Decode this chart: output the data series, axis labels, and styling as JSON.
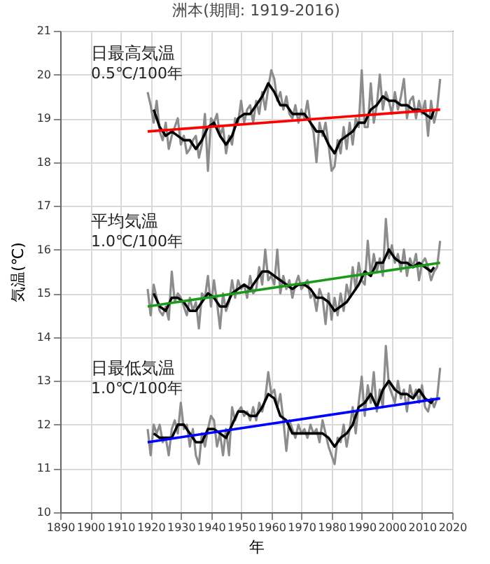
{
  "chart_data": {
    "type": "line",
    "title": "洲本(期間: 1919-2016)",
    "xlabel": "年",
    "ylabel": "気温(℃)",
    "annotations": [
      "日最高気温",
      "0.5℃/100年",
      "平均気温",
      "1.0℃/100年",
      "日最低気温",
      "1.0℃/100年"
    ],
    "x": [
      1919,
      1920,
      1921,
      1922,
      1923,
      1924,
      1925,
      1926,
      1927,
      1928,
      1929,
      1930,
      1931,
      1932,
      1933,
      1934,
      1935,
      1936,
      1937,
      1938,
      1939,
      1940,
      1941,
      1942,
      1943,
      1944,
      1945,
      1946,
      1947,
      1948,
      1949,
      1950,
      1951,
      1952,
      1953,
      1954,
      1955,
      1956,
      1957,
      1958,
      1959,
      1960,
      1961,
      1962,
      1963,
      1964,
      1965,
      1966,
      1967,
      1968,
      1969,
      1970,
      1971,
      1972,
      1973,
      1974,
      1975,
      1976,
      1977,
      1978,
      1979,
      1980,
      1981,
      1982,
      1983,
      1984,
      1985,
      1986,
      1987,
      1988,
      1989,
      1990,
      1991,
      1992,
      1993,
      1994,
      1995,
      1996,
      1997,
      1998,
      1999,
      2000,
      2001,
      2002,
      2003,
      2004,
      2005,
      2006,
      2007,
      2008,
      2009,
      2010,
      2011,
      2012,
      2013,
      2014,
      2015,
      2016
    ],
    "series": [
      {
        "color": "#8c8c8c",
        "values": [
          19.6,
          19.3,
          18.9,
          19.4,
          18.7,
          18.5,
          18.9,
          18.3,
          18.6,
          18.8,
          19.0,
          18.4,
          18.6,
          18.2,
          18.3,
          18.5,
          18.6,
          18.1,
          18.4,
          19.1,
          17.8,
          19.0,
          18.9,
          19.1,
          18.6,
          18.8,
          18.2,
          18.6,
          18.4,
          19.0,
          18.9,
          19.4,
          18.9,
          19.2,
          19.3,
          18.9,
          19.4,
          19.1,
          19.6,
          19.2,
          19.7,
          20.1,
          19.9,
          19.4,
          19.6,
          19.2,
          19.5,
          19.1,
          19.0,
          19.3,
          18.9,
          19.2,
          19.0,
          19.4,
          18.9,
          18.7,
          18.0,
          18.9,
          18.6,
          18.9,
          18.4,
          17.8,
          17.9,
          18.5,
          18.2,
          18.8,
          18.3,
          18.9,
          18.4,
          19.0,
          18.8,
          20.1,
          18.8,
          18.8,
          19.8,
          18.9,
          19.3,
          20.0,
          19.2,
          19.6,
          19.4,
          19.1,
          19.6,
          19.2,
          19.5,
          19.9,
          19.0,
          19.4,
          19.5,
          19.0,
          19.4,
          19.1,
          19.4,
          18.6,
          19.4,
          18.9,
          19.2,
          19.9
        ]
      },
      {
        "color": "#000000",
        "x": [
          1921,
          1923,
          1925,
          1927,
          1929,
          1931,
          1933,
          1935,
          1937,
          1939,
          1941,
          1943,
          1945,
          1947,
          1949,
          1951,
          1953,
          1955,
          1957,
          1959,
          1961,
          1963,
          1965,
          1967,
          1969,
          1971,
          1973,
          1975,
          1977,
          1979,
          1981,
          1983,
          1985,
          1987,
          1989,
          1991,
          1993,
          1995,
          1997,
          1999,
          2001,
          2003,
          2005,
          2007,
          2009,
          2011,
          2013,
          2014
        ],
        "values": [
          19.2,
          18.8,
          18.6,
          18.7,
          18.6,
          18.5,
          18.5,
          18.3,
          18.5,
          18.8,
          18.9,
          18.6,
          18.4,
          18.6,
          19.0,
          19.1,
          19.1,
          19.3,
          19.5,
          19.8,
          19.6,
          19.3,
          19.3,
          19.1,
          19.1,
          19.1,
          18.9,
          18.7,
          18.7,
          18.4,
          18.2,
          18.5,
          18.6,
          18.7,
          18.9,
          18.9,
          19.2,
          19.3,
          19.5,
          19.4,
          19.4,
          19.3,
          19.3,
          19.2,
          19.2,
          19.1,
          19.0,
          19.2
        ]
      },
      {
        "color": "#ff0000",
        "x": [
          1919,
          2016
        ],
        "values": [
          18.7,
          19.2
        ]
      },
      {
        "color": "#8c8c8c",
        "values": [
          15.1,
          14.5,
          15.2,
          14.9,
          14.6,
          14.5,
          14.7,
          14.4,
          15.5,
          14.8,
          15.0,
          14.9,
          14.7,
          14.5,
          14.9,
          14.6,
          14.8,
          14.2,
          15.0,
          14.9,
          15.4,
          14.7,
          15.3,
          14.8,
          14.2,
          15.0,
          14.6,
          14.8,
          15.3,
          14.9,
          15.3,
          15.1,
          15.2,
          14.9,
          15.4,
          15.0,
          15.1,
          15.6,
          15.2,
          16.0,
          15.3,
          15.4,
          15.2,
          16.0,
          15.0,
          15.4,
          15.1,
          15.3,
          14.9,
          15.2,
          15.4,
          15.1,
          15.2,
          15.3,
          14.9,
          15.0,
          14.6,
          15.1,
          14.9,
          14.3,
          15.0,
          14.4,
          14.9,
          14.5,
          15.0,
          14.6,
          15.2,
          14.9,
          15.6,
          15.1,
          15.7,
          15.3,
          15.2,
          16.2,
          15.4,
          15.9,
          15.5,
          15.8,
          15.4,
          16.7,
          15.8,
          16.1,
          15.7,
          15.9,
          15.5,
          16.0,
          15.4,
          15.8,
          15.6,
          15.9,
          15.3,
          15.7,
          15.8,
          15.6,
          15.3,
          15.5,
          15.6,
          16.2
        ]
      },
      {
        "color": "#000000",
        "x": [
          1921,
          1923,
          1925,
          1927,
          1929,
          1931,
          1933,
          1935,
          1937,
          1939,
          1941,
          1943,
          1945,
          1947,
          1949,
          1951,
          1953,
          1955,
          1957,
          1959,
          1961,
          1963,
          1965,
          1967,
          1969,
          1971,
          1973,
          1975,
          1977,
          1979,
          1981,
          1983,
          1985,
          1987,
          1989,
          1991,
          1993,
          1995,
          1997,
          1999,
          2001,
          2003,
          2005,
          2007,
          2009,
          2011,
          2013,
          2014
        ],
        "values": [
          15.0,
          14.7,
          14.6,
          14.9,
          14.9,
          14.8,
          14.6,
          14.6,
          14.8,
          15.0,
          14.9,
          14.7,
          14.7,
          15.0,
          15.1,
          15.2,
          15.1,
          15.3,
          15.5,
          15.5,
          15.4,
          15.3,
          15.2,
          15.1,
          15.2,
          15.2,
          15.1,
          14.9,
          14.9,
          14.8,
          14.6,
          14.7,
          14.8,
          15.0,
          15.2,
          15.5,
          15.4,
          15.7,
          15.7,
          16.0,
          15.8,
          15.7,
          15.7,
          15.6,
          15.7,
          15.6,
          15.5,
          15.6
        ]
      },
      {
        "color": "#1a9a1a",
        "x": [
          1919,
          2016
        ],
        "values": [
          14.7,
          15.7
        ]
      },
      {
        "color": "#8c8c8c",
        "values": [
          11.9,
          11.3,
          12.0,
          11.8,
          12.0,
          11.6,
          11.7,
          11.3,
          11.9,
          12.1,
          11.8,
          12.5,
          11.9,
          12.0,
          11.5,
          11.9,
          11.3,
          11.1,
          11.8,
          11.5,
          11.9,
          12.2,
          12.1,
          11.5,
          11.8,
          11.3,
          11.9,
          11.3,
          12.4,
          12.1,
          12.3,
          12.4,
          12.2,
          12.3,
          12.1,
          12.4,
          12.1,
          12.5,
          12.3,
          12.6,
          13.2,
          12.7,
          12.8,
          12.4,
          12.7,
          12.1,
          11.4,
          12.1,
          11.9,
          11.7,
          12.0,
          11.8,
          11.9,
          11.7,
          12.0,
          11.8,
          11.9,
          11.6,
          12.1,
          11.8,
          11.5,
          11.3,
          11.1,
          11.7,
          11.6,
          12.0,
          11.5,
          11.9,
          12.4,
          11.8,
          12.5,
          13.1,
          12.2,
          12.9,
          12.5,
          13.2,
          12.3,
          12.8,
          12.4,
          13.8,
          12.9,
          12.7,
          12.5,
          13.0,
          12.6,
          12.8,
          12.3,
          12.9,
          12.6,
          12.8,
          12.5,
          12.9,
          12.4,
          12.3,
          12.6,
          12.4,
          12.6,
          13.3
        ]
      },
      {
        "color": "#000000",
        "x": [
          1921,
          1923,
          1925,
          1927,
          1929,
          1931,
          1933,
          1935,
          1937,
          1939,
          1941,
          1943,
          1945,
          1947,
          1949,
          1951,
          1953,
          1955,
          1957,
          1959,
          1961,
          1963,
          1965,
          1967,
          1969,
          1971,
          1973,
          1975,
          1977,
          1979,
          1981,
          1983,
          1985,
          1987,
          1989,
          1991,
          1993,
          1995,
          1997,
          1999,
          2001,
          2003,
          2005,
          2007,
          2009,
          2011,
          2013,
          2014
        ],
        "values": [
          11.8,
          11.7,
          11.7,
          11.7,
          12.0,
          12.0,
          11.8,
          11.6,
          11.6,
          11.9,
          11.9,
          11.8,
          11.7,
          12.0,
          12.3,
          12.3,
          12.2,
          12.2,
          12.4,
          12.7,
          12.6,
          12.2,
          12.1,
          11.8,
          11.8,
          11.8,
          11.8,
          11.8,
          11.8,
          11.7,
          11.5,
          11.7,
          11.8,
          12.0,
          12.4,
          12.5,
          12.7,
          12.4,
          12.8,
          13.0,
          12.8,
          12.7,
          12.7,
          12.6,
          12.8,
          12.6,
          12.5,
          12.6
        ]
      },
      {
        "color": "#0000ff",
        "x": [
          1919,
          2016
        ],
        "values": [
          11.6,
          12.6
        ]
      }
    ],
    "xlim": [
      1890,
      2020
    ],
    "xticks": [
      1890,
      1900,
      1910,
      1920,
      1930,
      1940,
      1950,
      1960,
      1970,
      1980,
      1990,
      2000,
      2010,
      2020
    ],
    "ylim": [
      10,
      21
    ],
    "yticks": [
      10,
      11,
      12,
      13,
      14,
      15,
      16,
      17,
      18,
      19,
      20,
      21
    ],
    "grid": true
  }
}
